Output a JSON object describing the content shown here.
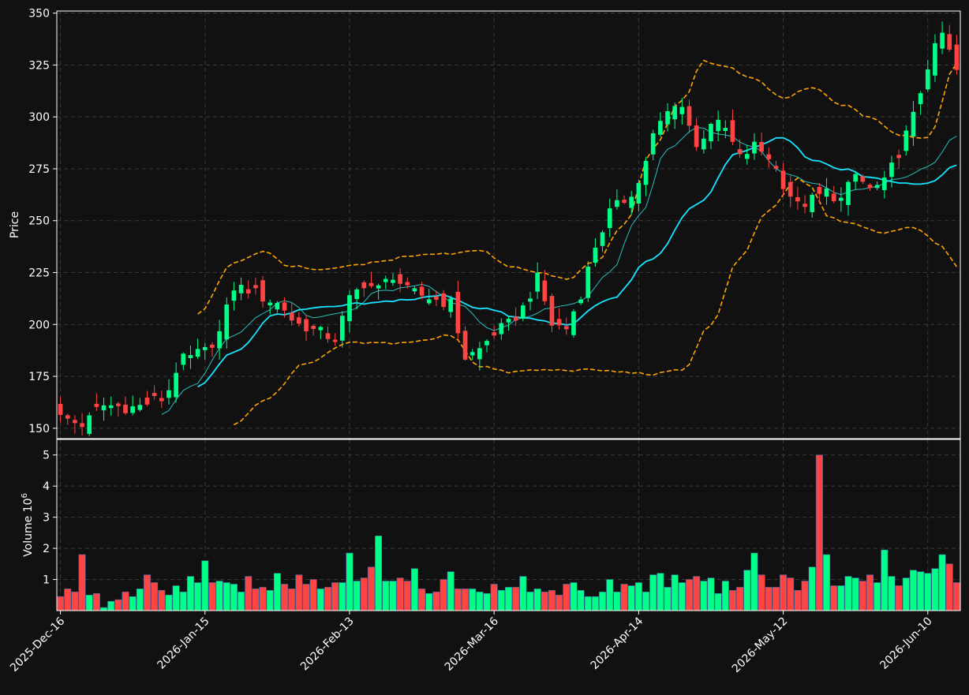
{
  "chart_data": {
    "type": "candlestick",
    "colors": {
      "background": "#111111",
      "up": "#00ff88",
      "down": "#ff4444",
      "volume_edge": "#3a6aa0",
      "ma_short": "#2fd0d0",
      "ma_long": "#16e5ff",
      "bollinger": "#ffa500",
      "grid": "#3a3a3a",
      "axes": "#ffffff"
    },
    "price_panel": {
      "ylabel": "Price",
      "ylim": [
        145,
        351
      ],
      "yticks": [
        150,
        175,
        200,
        225,
        250,
        275,
        300,
        325,
        350
      ]
    },
    "volume_panel": {
      "ylabel": "Volume",
      "ylabel_exponent": "10",
      "ylabel_power": "6",
      "ylim": [
        0,
        5.5
      ],
      "yticks": [
        1,
        2,
        3,
        4,
        5
      ]
    },
    "x_axis": {
      "tick_labels": [
        "2025-Dec-16",
        "2026-Jan-15",
        "2026-Feb-13",
        "2026-Mar-16",
        "2026-Apr-14",
        "2026-May-12",
        "2026-Jun-10"
      ],
      "tick_positions": [
        0,
        20,
        40,
        60,
        80,
        100,
        120
      ],
      "num_bars": 125
    },
    "anchor_closes": [
      [
        0,
        155
      ],
      [
        3,
        152
      ],
      [
        6,
        161
      ],
      [
        10,
        160
      ],
      [
        14,
        164
      ],
      [
        17,
        183
      ],
      [
        20,
        187
      ],
      [
        22,
        196
      ],
      [
        24,
        218
      ],
      [
        26,
        217
      ],
      [
        28,
        213
      ],
      [
        30,
        210
      ],
      [
        33,
        200
      ],
      [
        36,
        196
      ],
      [
        38,
        193
      ],
      [
        40,
        212
      ],
      [
        42,
        220
      ],
      [
        44,
        217
      ],
      [
        46,
        224
      ],
      [
        48,
        216
      ],
      [
        50,
        214
      ],
      [
        52,
        212
      ],
      [
        54,
        210
      ],
      [
        56,
        184
      ],
      [
        58,
        188
      ],
      [
        60,
        196
      ],
      [
        62,
        200
      ],
      [
        64,
        208
      ],
      [
        66,
        222
      ],
      [
        68,
        200
      ],
      [
        70,
        198
      ],
      [
        72,
        215
      ],
      [
        74,
        238
      ],
      [
        76,
        254
      ],
      [
        78,
        260
      ],
      [
        80,
        268
      ],
      [
        82,
        291
      ],
      [
        84,
        302
      ],
      [
        86,
        307
      ],
      [
        88,
        285
      ],
      [
        90,
        298
      ],
      [
        92,
        294
      ],
      [
        94,
        280
      ],
      [
        96,
        286
      ],
      [
        98,
        281
      ],
      [
        100,
        268
      ],
      [
        102,
        257
      ],
      [
        104,
        260
      ],
      [
        106,
        264
      ],
      [
        108,
        260
      ],
      [
        110,
        272
      ],
      [
        112,
        265
      ],
      [
        114,
        268
      ],
      [
        116,
        283
      ],
      [
        118,
        300
      ],
      [
        120,
        325
      ],
      [
        122,
        340
      ],
      [
        124,
        322
      ]
    ],
    "mid_band_control_points": [
      [
        14,
        157
      ],
      [
        18,
        170
      ],
      [
        24,
        195
      ],
      [
        28,
        205
      ],
      [
        31,
        212
      ],
      [
        35,
        203
      ],
      [
        40,
        206
      ],
      [
        44,
        216
      ],
      [
        50,
        219
      ],
      [
        55,
        210
      ],
      [
        60,
        197
      ],
      [
        64,
        203
      ],
      [
        68,
        208
      ],
      [
        72,
        211
      ],
      [
        76,
        225
      ],
      [
        80,
        252
      ],
      [
        84,
        284
      ],
      [
        88,
        295
      ],
      [
        92,
        291
      ],
      [
        96,
        285
      ],
      [
        100,
        273
      ],
      [
        104,
        268
      ],
      [
        108,
        263
      ],
      [
        112,
        266
      ],
      [
        116,
        270
      ],
      [
        120,
        276
      ],
      [
        124,
        291
      ]
    ],
    "long_ma_control_points": [
      [
        19,
        170
      ],
      [
        24,
        187
      ],
      [
        30,
        205
      ],
      [
        36,
        208
      ],
      [
        42,
        210
      ],
      [
        48,
        212
      ],
      [
        53,
        214
      ],
      [
        58,
        208
      ],
      [
        64,
        203
      ],
      [
        70,
        200
      ],
      [
        76,
        212
      ],
      [
        82,
        232
      ],
      [
        88,
        258
      ],
      [
        94,
        283
      ],
      [
        100,
        290
      ],
      [
        104,
        279
      ],
      [
        108,
        275
      ],
      [
        112,
        271
      ],
      [
        116,
        268
      ],
      [
        120,
        268
      ],
      [
        124,
        277
      ]
    ],
    "upper_band_control_points": [
      [
        19,
        205
      ],
      [
        24,
        230
      ],
      [
        28,
        235
      ],
      [
        32,
        228
      ],
      [
        36,
        226
      ],
      [
        40,
        228
      ],
      [
        44,
        230
      ],
      [
        48,
        233
      ],
      [
        53,
        234
      ],
      [
        58,
        236
      ],
      [
        62,
        228
      ],
      [
        66,
        225
      ],
      [
        70,
        222
      ],
      [
        74,
        230
      ],
      [
        78,
        248
      ],
      [
        82,
        285
      ],
      [
        86,
        308
      ],
      [
        89,
        327
      ],
      [
        92,
        324
      ],
      [
        96,
        318
      ],
      [
        100,
        309
      ],
      [
        104,
        314
      ],
      [
        108,
        306
      ],
      [
        112,
        300
      ],
      [
        116,
        291
      ],
      [
        120,
        290
      ],
      [
        124,
        326
      ]
    ],
    "lower_band_control_points": [
      [
        24,
        152
      ],
      [
        28,
        163
      ],
      [
        34,
        181
      ],
      [
        40,
        191
      ],
      [
        46,
        191
      ],
      [
        50,
        192
      ],
      [
        54,
        195
      ],
      [
        58,
        180
      ],
      [
        62,
        177
      ],
      [
        66,
        178
      ],
      [
        70,
        178
      ],
      [
        74,
        178
      ],
      [
        78,
        177
      ],
      [
        82,
        176
      ],
      [
        86,
        178
      ],
      [
        90,
        200
      ],
      [
        94,
        232
      ],
      [
        98,
        255
      ],
      [
        102,
        270
      ],
      [
        104,
        266
      ],
      [
        106,
        252
      ],
      [
        110,
        248
      ],
      [
        114,
        244
      ],
      [
        118,
        247
      ],
      [
        122,
        238
      ],
      [
        124,
        228
      ]
    ],
    "volume_values_millions": [
      0.45,
      0.7,
      0.6,
      1.8,
      0.5,
      0.55,
      0.1,
      0.3,
      0.35,
      0.6,
      0.45,
      0.7,
      1.15,
      0.9,
      0.65,
      0.5,
      0.8,
      0.6,
      1.1,
      0.9,
      1.6,
      0.9,
      0.95,
      0.9,
      0.85,
      0.6,
      1.1,
      0.7,
      0.75,
      0.65,
      1.2,
      0.85,
      0.7,
      1.15,
      0.85,
      1.0,
      0.7,
      0.75,
      0.9,
      0.9,
      1.85,
      0.95,
      1.05,
      1.4,
      2.4,
      0.95,
      0.95,
      1.05,
      0.95,
      1.35,
      0.7,
      0.55,
      0.6,
      1.0,
      1.25,
      0.7,
      0.7,
      0.7,
      0.6,
      0.55,
      0.85,
      0.65,
      0.75,
      0.75,
      1.1,
      0.6,
      0.7,
      0.6,
      0.65,
      0.5,
      0.85,
      0.9,
      0.65,
      0.45,
      0.45,
      0.6,
      1.0,
      0.6,
      0.85,
      0.8,
      0.9,
      0.6,
      1.15,
      1.2,
      0.75,
      1.15,
      0.9,
      1.0,
      1.1,
      0.95,
      1.05,
      0.55,
      0.95,
      0.65,
      0.75,
      1.3,
      1.85,
      1.15,
      0.75,
      0.75,
      1.15,
      1.05,
      0.65,
      0.95,
      1.4,
      5.0,
      1.8,
      0.8,
      0.8,
      1.1,
      1.05,
      0.95,
      1.15,
      0.9,
      1.95,
      1.1,
      0.8,
      1.05,
      1.3,
      1.25,
      1.2,
      1.35,
      1.8,
      1.5,
      0.9
    ]
  }
}
